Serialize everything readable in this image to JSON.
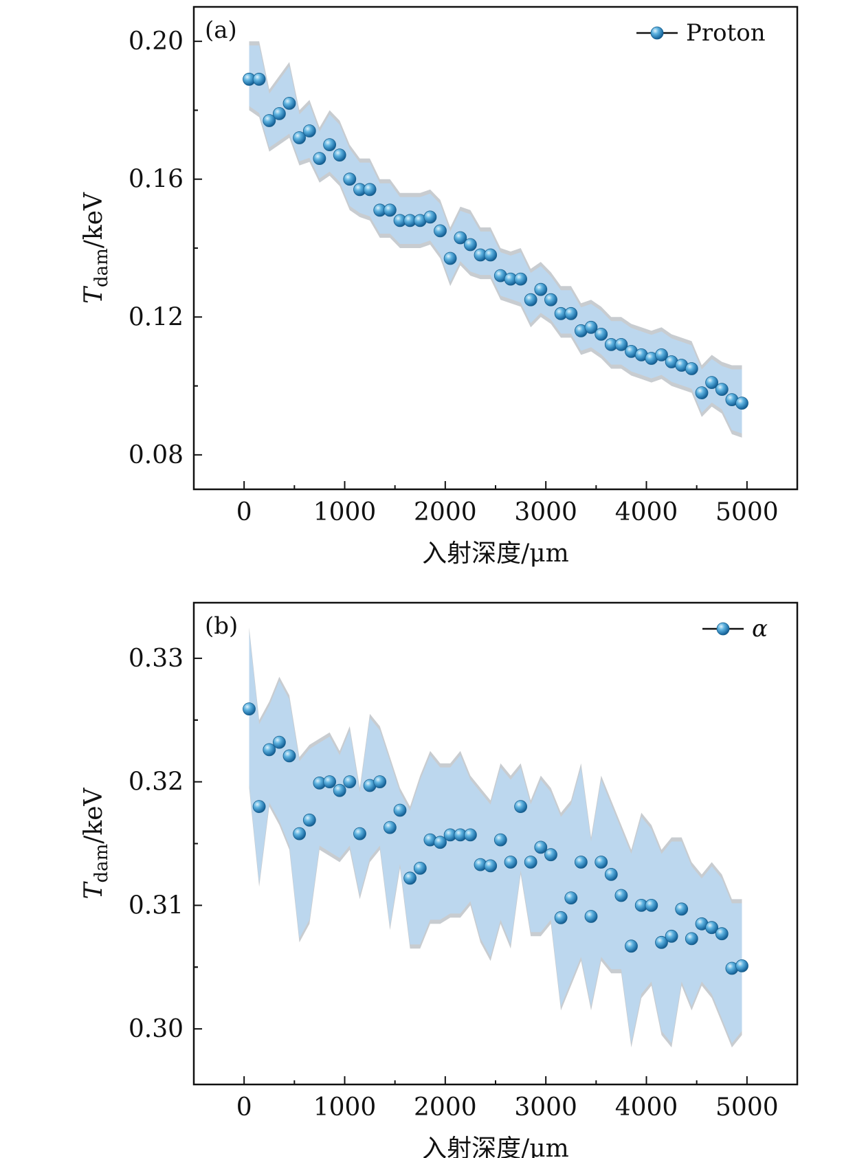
{
  "chart_data": [
    {
      "type": "scatter",
      "panel_label": "(a)",
      "ylabel_main": "T",
      "ylabel_sub": "dam",
      "ylabel_unit": "/keV",
      "xlabel": "入射深度/μm",
      "xlim": [
        -500,
        5500
      ],
      "ylim": [
        0.07,
        0.21
      ],
      "xticks": [
        0,
        1000,
        2000,
        3000,
        4000,
        5000
      ],
      "xtick_labels": [
        "0",
        "1000",
        "2000",
        "3000",
        "4000",
        "5000"
      ],
      "yticks": [
        0.08,
        0.12,
        0.16,
        0.2
      ],
      "ytick_labels": [
        "0.08",
        "0.12",
        "0.16",
        "0.20"
      ],
      "legend": {
        "label": "Proton",
        "italic": false,
        "position": "top-right"
      },
      "colors": {
        "marker": "#2b8cc4",
        "band": "#bcd7ee",
        "band_edge": "#c8ccd0"
      },
      "series": [
        {
          "name": "Proton",
          "x": [
            50,
            150,
            250,
            350,
            450,
            550,
            650,
            750,
            850,
            950,
            1050,
            1150,
            1250,
            1350,
            1450,
            1550,
            1650,
            1750,
            1850,
            1950,
            2050,
            2150,
            2250,
            2350,
            2450,
            2550,
            2650,
            2750,
            2850,
            2950,
            3050,
            3150,
            3250,
            3350,
            3450,
            3550,
            3650,
            3750,
            3850,
            3950,
            4050,
            4150,
            4250,
            4350,
            4450,
            4550,
            4650,
            4750,
            4850,
            4950
          ],
          "y": [
            0.189,
            0.189,
            0.177,
            0.179,
            0.182,
            0.172,
            0.174,
            0.166,
            0.17,
            0.167,
            0.16,
            0.157,
            0.157,
            0.151,
            0.151,
            0.148,
            0.148,
            0.148,
            0.149,
            0.145,
            0.137,
            0.143,
            0.141,
            0.138,
            0.138,
            0.132,
            0.131,
            0.131,
            0.125,
            0.128,
            0.125,
            0.121,
            0.121,
            0.116,
            0.117,
            0.115,
            0.112,
            0.112,
            0.11,
            0.109,
            0.108,
            0.109,
            0.107,
            0.106,
            0.105,
            0.098,
            0.101,
            0.099,
            0.096,
            0.095
          ],
          "upper": [
            0.2,
            0.2,
            0.186,
            0.19,
            0.194,
            0.18,
            0.183,
            0.175,
            0.18,
            0.177,
            0.17,
            0.166,
            0.166,
            0.16,
            0.16,
            0.156,
            0.156,
            0.156,
            0.157,
            0.154,
            0.146,
            0.152,
            0.151,
            0.146,
            0.146,
            0.14,
            0.139,
            0.14,
            0.134,
            0.136,
            0.133,
            0.129,
            0.129,
            0.124,
            0.125,
            0.123,
            0.12,
            0.12,
            0.118,
            0.117,
            0.116,
            0.117,
            0.115,
            0.114,
            0.113,
            0.106,
            0.109,
            0.107,
            0.106,
            0.106
          ],
          "lower": [
            0.18,
            0.178,
            0.168,
            0.17,
            0.172,
            0.164,
            0.165,
            0.159,
            0.161,
            0.158,
            0.151,
            0.149,
            0.148,
            0.143,
            0.143,
            0.14,
            0.14,
            0.14,
            0.141,
            0.137,
            0.129,
            0.135,
            0.132,
            0.131,
            0.131,
            0.125,
            0.124,
            0.123,
            0.117,
            0.12,
            0.118,
            0.114,
            0.114,
            0.109,
            0.11,
            0.108,
            0.105,
            0.105,
            0.103,
            0.102,
            0.101,
            0.102,
            0.1,
            0.099,
            0.098,
            0.091,
            0.094,
            0.092,
            0.086,
            0.085
          ]
        }
      ]
    },
    {
      "type": "scatter",
      "panel_label": "(b)",
      "ylabel_main": "T",
      "ylabel_sub": "dam",
      "ylabel_unit": "/keV",
      "xlabel": "入射深度/μm",
      "xlim": [
        -500,
        5500
      ],
      "ylim": [
        0.2955,
        0.3345
      ],
      "xticks": [
        0,
        1000,
        2000,
        3000,
        4000,
        5000
      ],
      "xtick_labels": [
        "0",
        "1000",
        "2000",
        "3000",
        "4000",
        "5000"
      ],
      "yticks": [
        0.3,
        0.31,
        0.32,
        0.33
      ],
      "ytick_labels": [
        "0.30",
        "0.31",
        "0.32",
        "0.33"
      ],
      "legend": {
        "label": "α",
        "italic": true,
        "position": "top-right"
      },
      "colors": {
        "marker": "#2b8cc4",
        "band": "#bcd7ee",
        "band_edge": "#c8ccd0"
      },
      "series": [
        {
          "name": "α",
          "x": [
            50,
            150,
            250,
            350,
            450,
            550,
            650,
            750,
            850,
            950,
            1050,
            1150,
            1250,
            1350,
            1450,
            1550,
            1650,
            1750,
            1850,
            1950,
            2050,
            2150,
            2250,
            2350,
            2450,
            2550,
            2650,
            2750,
            2850,
            2950,
            3050,
            3150,
            3250,
            3350,
            3450,
            3550,
            3650,
            3750,
            3850,
            3950,
            4050,
            4150,
            4250,
            4350,
            4450,
            4550,
            4650,
            4750,
            4850,
            4950
          ],
          "y": [
            0.3259,
            0.318,
            0.3226,
            0.3232,
            0.3221,
            0.3158,
            0.3169,
            0.3199,
            0.32,
            0.3193,
            0.32,
            0.3158,
            0.3197,
            0.32,
            0.3163,
            0.3177,
            0.3122,
            0.313,
            0.3153,
            0.3151,
            0.3157,
            0.3157,
            0.3157,
            0.3133,
            0.3132,
            0.3153,
            0.3135,
            0.318,
            0.3135,
            0.3147,
            0.3141,
            0.309,
            0.3106,
            0.3135,
            0.3091,
            0.3135,
            0.3125,
            0.3108,
            0.3067,
            0.31,
            0.31,
            0.307,
            0.3075,
            0.3097,
            0.3073,
            0.3085,
            0.3082,
            0.3077,
            0.3049,
            0.3051
          ],
          "upper": [
            0.3325,
            0.325,
            0.3265,
            0.3285,
            0.327,
            0.322,
            0.323,
            0.3235,
            0.324,
            0.3225,
            0.3245,
            0.3195,
            0.3255,
            0.3245,
            0.322,
            0.3195,
            0.318,
            0.3205,
            0.3225,
            0.3215,
            0.3215,
            0.3225,
            0.3205,
            0.3195,
            0.3185,
            0.3215,
            0.3205,
            0.3215,
            0.3185,
            0.3205,
            0.3195,
            0.3175,
            0.3185,
            0.3215,
            0.3155,
            0.3205,
            0.3185,
            0.3165,
            0.3145,
            0.3175,
            0.3165,
            0.3145,
            0.3155,
            0.3155,
            0.3135,
            0.3125,
            0.3135,
            0.3125,
            0.3105,
            0.3105
          ],
          "lower": [
            0.3195,
            0.3115,
            0.318,
            0.3165,
            0.3145,
            0.307,
            0.3085,
            0.3145,
            0.314,
            0.3135,
            0.3145,
            0.3105,
            0.3135,
            0.3145,
            0.308,
            0.313,
            0.3065,
            0.3065,
            0.3085,
            0.3085,
            0.309,
            0.309,
            0.31,
            0.307,
            0.3055,
            0.3085,
            0.3065,
            0.3125,
            0.3075,
            0.3075,
            0.3085,
            0.3015,
            0.3035,
            0.3055,
            0.3015,
            0.3055,
            0.3045,
            0.3045,
            0.2985,
            0.3025,
            0.3035,
            0.2995,
            0.2985,
            0.3035,
            0.3015,
            0.3035,
            0.3025,
            0.3005,
            0.2985,
            0.2995
          ]
        }
      ]
    }
  ]
}
